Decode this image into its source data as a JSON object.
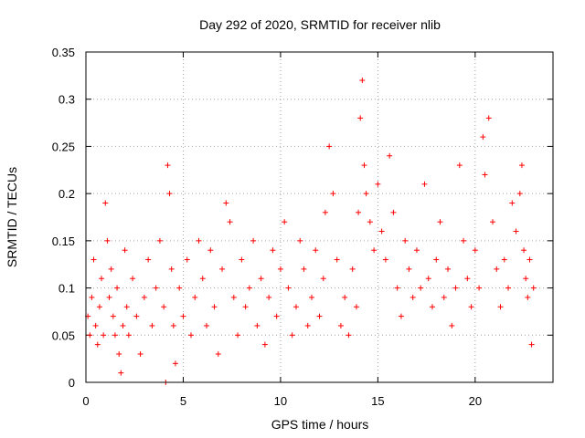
{
  "chart_data": {
    "type": "scatter",
    "title": "Day 292 of 2020, SRMTID for receiver nlib",
    "xlabel": "GPS time / hours",
    "ylabel": "SRMTID / TECUs",
    "xlim": [
      0,
      24
    ],
    "ylim": [
      0,
      0.35
    ],
    "xticks": [
      0,
      5,
      10,
      15,
      20
    ],
    "xtick_labels": [
      "0",
      "5",
      "10",
      "15",
      "20"
    ],
    "yticks": [
      0,
      0.05,
      0.1,
      0.15,
      0.2,
      0.25,
      0.3,
      0.35
    ],
    "ytick_labels": [
      "0",
      "0.05",
      "0.1",
      "0.15",
      "0.2",
      "0.25",
      "0.3",
      "0.35"
    ],
    "grid": true,
    "marker": "plus",
    "color": "#ff0000",
    "series": [
      {
        "name": "SRMTID",
        "points": [
          [
            0.1,
            0.07
          ],
          [
            0.2,
            0.05
          ],
          [
            0.3,
            0.09
          ],
          [
            0.4,
            0.13
          ],
          [
            0.5,
            0.06
          ],
          [
            0.6,
            0.04
          ],
          [
            0.7,
            0.08
          ],
          [
            0.8,
            0.11
          ],
          [
            0.9,
            0.05
          ],
          [
            1.0,
            0.19
          ],
          [
            1.1,
            0.15
          ],
          [
            1.2,
            0.09
          ],
          [
            1.3,
            0.12
          ],
          [
            1.4,
            0.07
          ],
          [
            1.5,
            0.05
          ],
          [
            1.6,
            0.1
          ],
          [
            1.7,
            0.03
          ],
          [
            1.8,
            0.01
          ],
          [
            1.9,
            0.06
          ],
          [
            2.0,
            0.14
          ],
          [
            2.1,
            0.08
          ],
          [
            2.2,
            0.05
          ],
          [
            2.4,
            0.11
          ],
          [
            2.6,
            0.07
          ],
          [
            2.8,
            0.03
          ],
          [
            3.0,
            0.09
          ],
          [
            3.2,
            0.13
          ],
          [
            3.4,
            0.06
          ],
          [
            3.6,
            0.1
          ],
          [
            3.8,
            0.15
          ],
          [
            4.0,
            0.08
          ],
          [
            4.1,
            0.0
          ],
          [
            4.2,
            0.23
          ],
          [
            4.3,
            0.2
          ],
          [
            4.4,
            0.12
          ],
          [
            4.5,
            0.06
          ],
          [
            4.6,
            0.02
          ],
          [
            4.8,
            0.1
          ],
          [
            5.0,
            0.07
          ],
          [
            5.2,
            0.13
          ],
          [
            5.4,
            0.05
          ],
          [
            5.6,
            0.09
          ],
          [
            5.8,
            0.15
          ],
          [
            6.0,
            0.11
          ],
          [
            6.2,
            0.06
          ],
          [
            6.4,
            0.14
          ],
          [
            6.6,
            0.08
          ],
          [
            6.8,
            0.03
          ],
          [
            7.0,
            0.12
          ],
          [
            7.2,
            0.19
          ],
          [
            7.4,
            0.17
          ],
          [
            7.6,
            0.09
          ],
          [
            7.8,
            0.05
          ],
          [
            8.0,
            0.13
          ],
          [
            8.2,
            0.08
          ],
          [
            8.4,
            0.1
          ],
          [
            8.6,
            0.15
          ],
          [
            8.8,
            0.06
          ],
          [
            9.0,
            0.11
          ],
          [
            9.2,
            0.04
          ],
          [
            9.4,
            0.09
          ],
          [
            9.6,
            0.14
          ],
          [
            9.8,
            0.07
          ],
          [
            10.0,
            0.12
          ],
          [
            10.2,
            0.17
          ],
          [
            10.4,
            0.1
          ],
          [
            10.6,
            0.05
          ],
          [
            10.8,
            0.08
          ],
          [
            11.0,
            0.15
          ],
          [
            11.2,
            0.12
          ],
          [
            11.4,
            0.06
          ],
          [
            11.6,
            0.09
          ],
          [
            11.8,
            0.14
          ],
          [
            12.0,
            0.07
          ],
          [
            12.2,
            0.11
          ],
          [
            12.3,
            0.18
          ],
          [
            12.5,
            0.25
          ],
          [
            12.7,
            0.2
          ],
          [
            12.9,
            0.13
          ],
          [
            13.1,
            0.06
          ],
          [
            13.3,
            0.09
          ],
          [
            13.5,
            0.05
          ],
          [
            13.7,
            0.12
          ],
          [
            13.9,
            0.08
          ],
          [
            14.0,
            0.18
          ],
          [
            14.1,
            0.28
          ],
          [
            14.2,
            0.32
          ],
          [
            14.3,
            0.23
          ],
          [
            14.4,
            0.2
          ],
          [
            14.6,
            0.17
          ],
          [
            14.8,
            0.14
          ],
          [
            15.0,
            0.21
          ],
          [
            15.2,
            0.16
          ],
          [
            15.4,
            0.13
          ],
          [
            15.6,
            0.24
          ],
          [
            15.8,
            0.18
          ],
          [
            16.0,
            0.1
          ],
          [
            16.2,
            0.07
          ],
          [
            16.4,
            0.15
          ],
          [
            16.6,
            0.12
          ],
          [
            16.8,
            0.09
          ],
          [
            17.0,
            0.14
          ],
          [
            17.2,
            0.1
          ],
          [
            17.4,
            0.21
          ],
          [
            17.6,
            0.11
          ],
          [
            17.8,
            0.08
          ],
          [
            18.0,
            0.13
          ],
          [
            18.2,
            0.17
          ],
          [
            18.4,
            0.09
          ],
          [
            18.6,
            0.12
          ],
          [
            18.8,
            0.06
          ],
          [
            19.0,
            0.1
          ],
          [
            19.2,
            0.23
          ],
          [
            19.4,
            0.15
          ],
          [
            19.6,
            0.11
          ],
          [
            19.8,
            0.08
          ],
          [
            20.0,
            0.14
          ],
          [
            20.2,
            0.1
          ],
          [
            20.4,
            0.26
          ],
          [
            20.5,
            0.22
          ],
          [
            20.7,
            0.28
          ],
          [
            20.9,
            0.17
          ],
          [
            21.1,
            0.12
          ],
          [
            21.3,
            0.08
          ],
          [
            21.5,
            0.13
          ],
          [
            21.7,
            0.1
          ],
          [
            21.9,
            0.19
          ],
          [
            22.1,
            0.16
          ],
          [
            22.3,
            0.2
          ],
          [
            22.4,
            0.23
          ],
          [
            22.5,
            0.14
          ],
          [
            22.6,
            0.11
          ],
          [
            22.7,
            0.09
          ],
          [
            22.8,
            0.13
          ],
          [
            22.9,
            0.04
          ],
          [
            23.0,
            0.1
          ]
        ]
      }
    ]
  }
}
